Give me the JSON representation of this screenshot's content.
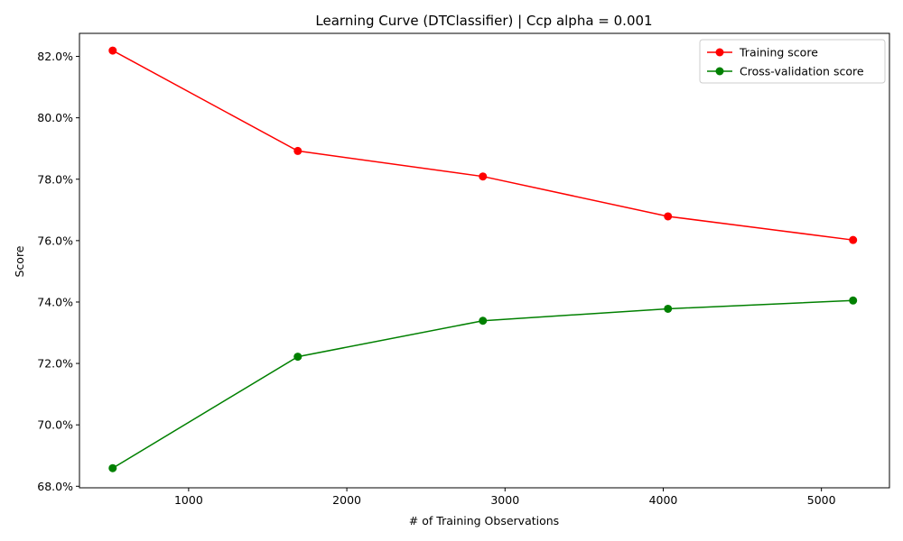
{
  "chart_data": {
    "type": "line",
    "title": "Learning Curve (DTClassifier) | Ccp alpha = 0.001",
    "xlabel": "# of Training Observations",
    "ylabel": "Score",
    "x": [
      520,
      1690,
      2860,
      4030,
      5200
    ],
    "xlim": [
      310,
      5430
    ],
    "ylim": [
      0.6795,
      0.8275
    ],
    "x_ticks": [
      1000,
      2000,
      3000,
      4000,
      5000
    ],
    "x_tick_labels": [
      "1000",
      "2000",
      "3000",
      "4000",
      "5000"
    ],
    "y_ticks": [
      0.68,
      0.7,
      0.72,
      0.74,
      0.76,
      0.78,
      0.8,
      0.82
    ],
    "y_tick_labels": [
      "68.0%",
      "70.0%",
      "72.0%",
      "74.0%",
      "76.0%",
      "78.0%",
      "80.0%",
      "82.0%"
    ],
    "grid": false,
    "legend_position": "top-right",
    "series": [
      {
        "name": "Training score",
        "color": "#ff0000",
        "marker": "circle",
        "values": [
          0.8219,
          0.7892,
          0.7809,
          0.7679,
          0.7602
        ]
      },
      {
        "name": "Cross-validation score",
        "color": "#008000",
        "marker": "circle",
        "values": [
          0.6859,
          0.7222,
          0.7339,
          0.7378,
          0.7405
        ]
      }
    ]
  }
}
